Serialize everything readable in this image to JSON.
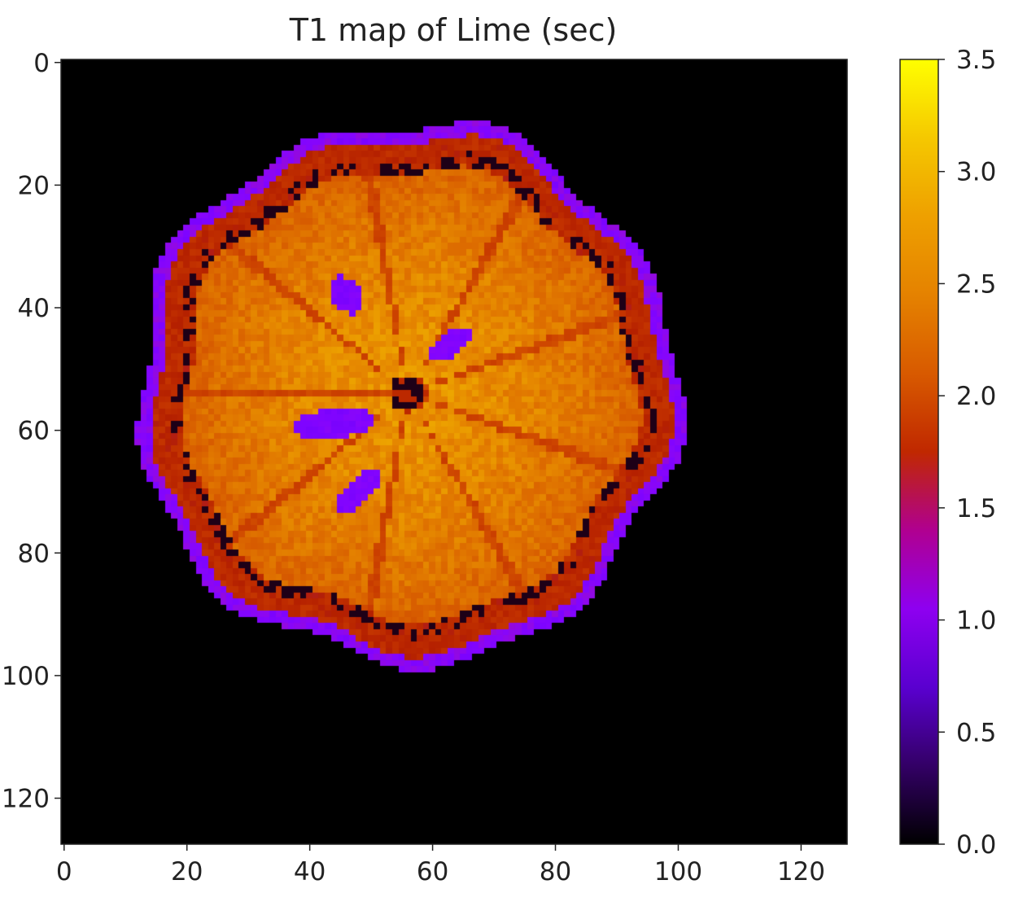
{
  "chart_data": {
    "type": "heatmap",
    "title": "T1 map of Lime (sec)",
    "xlabel": "",
    "ylabel": "",
    "image_shape": [
      128,
      128
    ],
    "x_ticks": [
      "0",
      "20",
      "40",
      "60",
      "80",
      "100",
      "120"
    ],
    "y_ticks": [
      "0",
      "20",
      "40",
      "60",
      "80",
      "100",
      "120"
    ],
    "colorbar": {
      "colormap": "gnuplot",
      "min": 0.0,
      "max": 3.5,
      "ticks": [
        "0.0",
        "0.5",
        "1.0",
        "1.5",
        "2.0",
        "2.5",
        "3.0",
        "3.5"
      ]
    },
    "object": {
      "center_col": 56,
      "center_row": 54,
      "outer_radius": 44,
      "segments": 9,
      "peel_outer_value": 1.0,
      "peel_inner_value": 1.9,
      "pulp_value": 2.9,
      "background_value": 0.0,
      "seed_value": 0.9
    }
  },
  "colors": {
    "background": "#ffffff",
    "plot_background": "#030303",
    "axis": "#222222"
  }
}
